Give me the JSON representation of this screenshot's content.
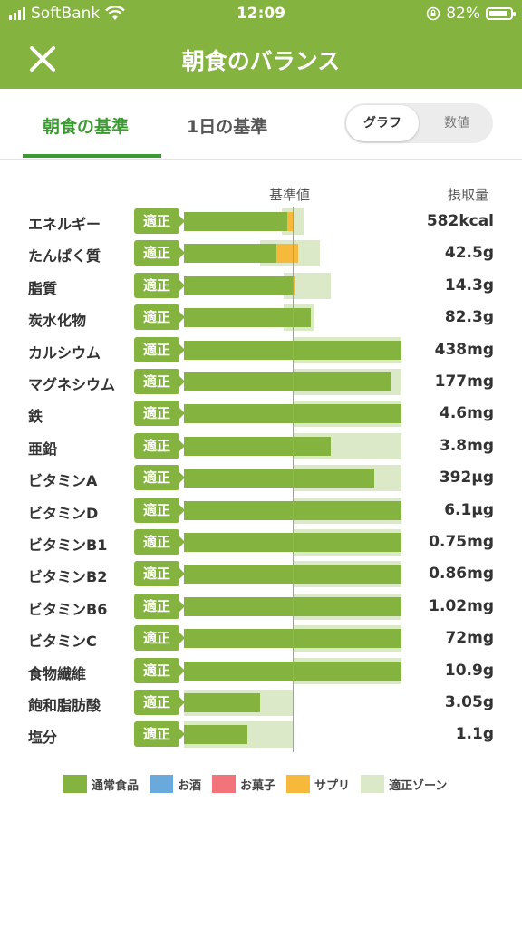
{
  "status_bar": {
    "carrier": "SoftBank",
    "time": "12:09",
    "battery": "82%"
  },
  "header": {
    "title": "朝食のバランス"
  },
  "tabs": [
    {
      "label": "朝食の基準"
    },
    {
      "label": "1日の基準"
    }
  ],
  "view_toggle": {
    "graph": "グラフ",
    "numeric": "数値"
  },
  "columns": {
    "standard": "基準値",
    "intake": "摂取量"
  },
  "colors": {
    "normal_food": "#84b43f",
    "alcohol": "#6aa9dc",
    "snacks": "#f2737a",
    "supplement": "#f7b93c",
    "zone": "#dbe9c8"
  },
  "rows": [
    {
      "name": "エネルギー",
      "status": "適正",
      "value": "582kcal",
      "food_level": 0.95,
      "supp_level": 0.05,
      "zone_min": 0.9,
      "zone_max": 1.1
    },
    {
      "name": "たんぱく質",
      "status": "適正",
      "value": "42.5g",
      "food_level": 0.85,
      "supp_level": 0.2,
      "zone_min": 0.7,
      "zone_max": 1.25
    },
    {
      "name": "脂質",
      "status": "適正",
      "value": "14.3g",
      "food_level": 1.0,
      "supp_level": 0.02,
      "zone_min": 0.92,
      "zone_max": 1.35
    },
    {
      "name": "炭水化物",
      "status": "適正",
      "value": "82.3g",
      "food_level": 1.17,
      "supp_level": 0,
      "zone_min": 0.92,
      "zone_max": 1.2
    },
    {
      "name": "カルシウム",
      "status": "適正",
      "value": "438mg",
      "food_level": 2.0,
      "supp_level": 0,
      "zone_min": 1.0,
      "zone_max": 2.0
    },
    {
      "name": "マグネシウム",
      "status": "適正",
      "value": "177mg",
      "food_level": 1.9,
      "supp_level": 0,
      "zone_min": 1.0,
      "zone_max": 2.0
    },
    {
      "name": "鉄",
      "status": "適正",
      "value": "4.6mg",
      "food_level": 2.0,
      "supp_level": 0,
      "zone_min": 1.0,
      "zone_max": 2.0
    },
    {
      "name": "亜鉛",
      "status": "適正",
      "value": "3.8mg",
      "food_level": 1.35,
      "supp_level": 0,
      "zone_min": 1.0,
      "zone_max": 2.0
    },
    {
      "name": "ビタミンA",
      "status": "適正",
      "value": "392μg",
      "food_level": 1.75,
      "supp_level": 0,
      "zone_min": 1.0,
      "zone_max": 2.0
    },
    {
      "name": "ビタミンD",
      "status": "適正",
      "value": "6.1μg",
      "food_level": 2.0,
      "supp_level": 0,
      "zone_min": 1.0,
      "zone_max": 2.0
    },
    {
      "name": "ビタミンB1",
      "status": "適正",
      "value": "0.75mg",
      "food_level": 2.0,
      "supp_level": 0,
      "zone_min": 1.0,
      "zone_max": 2.0
    },
    {
      "name": "ビタミンB2",
      "status": "適正",
      "value": "0.86mg",
      "food_level": 2.0,
      "supp_level": 0,
      "zone_min": 1.0,
      "zone_max": 2.0
    },
    {
      "name": "ビタミンB6",
      "status": "適正",
      "value": "1.02mg",
      "food_level": 2.0,
      "supp_level": 0,
      "zone_min": 1.0,
      "zone_max": 2.0
    },
    {
      "name": "ビタミンC",
      "status": "適正",
      "value": "72mg",
      "food_level": 2.0,
      "supp_level": 0,
      "zone_min": 1.0,
      "zone_max": 2.0
    },
    {
      "name": "食物繊維",
      "status": "適正",
      "value": "10.9g",
      "food_level": 2.0,
      "supp_level": 0,
      "zone_min": 1.0,
      "zone_max": 2.0
    },
    {
      "name": "飽和脂肪酸",
      "status": "適正",
      "value": "3.05g",
      "food_level": 0.7,
      "supp_level": 0,
      "zone_min": 0.0,
      "zone_max": 1.0
    },
    {
      "name": "塩分",
      "status": "適正",
      "value": "1.1g",
      "food_level": 0.58,
      "supp_level": 0,
      "zone_min": 0.0,
      "zone_max": 1.0
    }
  ],
  "legend": [
    {
      "label": "通常食品",
      "color": "#84b43f"
    },
    {
      "label": "お酒",
      "color": "#6aa9dc"
    },
    {
      "label": "お菓子",
      "color": "#f2737a"
    },
    {
      "label": "サプリ",
      "color": "#f7b93c"
    },
    {
      "label": "適正ゾーン",
      "color": "#dbe9c8"
    }
  ]
}
